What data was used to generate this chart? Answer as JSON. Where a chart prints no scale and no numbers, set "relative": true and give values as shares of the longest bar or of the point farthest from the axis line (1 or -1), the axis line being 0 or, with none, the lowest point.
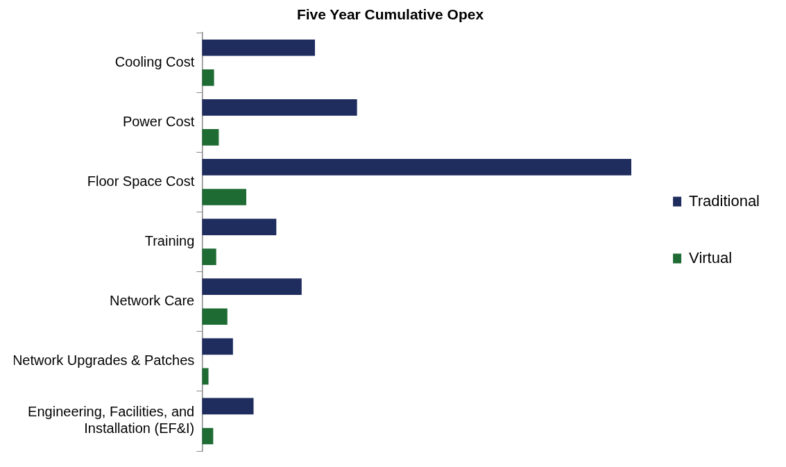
{
  "chart_data": {
    "type": "bar",
    "orientation": "horizontal",
    "relative": true,
    "title": "Five Year Cumulative Opex",
    "categories": [
      "Cooling Cost",
      "Power Cost",
      "Floor Space Cost",
      "Training",
      "Network Care",
      "Network Upgrades & Patches",
      "Engineering, Facilities, and Installation (EF&I)"
    ],
    "series": [
      {
        "name": "Traditional",
        "color": "#1f2d5e",
        "values": [
          0.263,
          0.361,
          1,
          0.173,
          0.232,
          0.072,
          0.12
        ]
      },
      {
        "name": "Virtual",
        "color": "#1e6b33",
        "values": [
          0.028,
          0.039,
          0.103,
          0.033,
          0.059,
          0.015,
          0.026
        ]
      }
    ],
    "legend": "right"
  }
}
